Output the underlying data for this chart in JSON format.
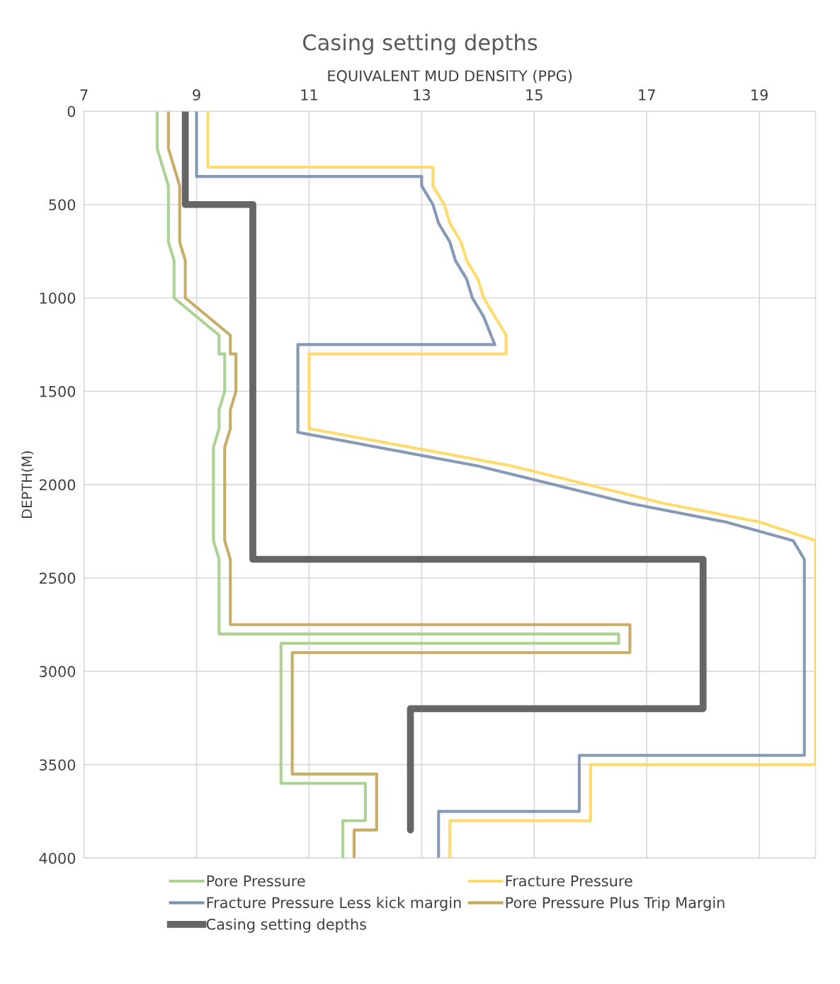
{
  "chart_data": {
    "type": "line",
    "title": "Casing setting depths",
    "xlabel": "EQUIVALENT MUD DENSITY (PPG)",
    "ylabel": "DEPTH(M)",
    "xlim": [
      7,
      20
    ],
    "xticks": [
      7,
      9,
      11,
      13,
      15,
      17,
      19
    ],
    "ylim": [
      4000,
      0
    ],
    "yticks": [
      0,
      500,
      1000,
      1500,
      2000,
      2500,
      3000,
      3500,
      4000
    ],
    "grid": true,
    "legend": "bottom",
    "marker": "none",
    "line_style": "solid",
    "series": [
      {
        "name": "Pore Pressure",
        "color": "#a9d18e",
        "x": [
          8.3,
          8.3,
          8.5,
          8.5,
          8.6,
          8.6,
          9.4,
          9.4,
          9.5,
          9.5,
          9.4,
          9.4,
          9.3,
          9.3,
          9.4,
          9.4,
          16.5,
          16.5,
          10.5,
          10.5,
          12.0,
          12.0,
          11.6,
          11.6
        ],
        "values": [
          0,
          200,
          400,
          700,
          800,
          1000,
          1200,
          1300,
          1300,
          1500,
          1600,
          1700,
          1800,
          2300,
          2400,
          2800,
          2800,
          2850,
          2850,
          3600,
          3600,
          3800,
          3800,
          4000
        ]
      },
      {
        "name": "Fracture Pressure",
        "color": "#ffd966",
        "x": [
          9.2,
          9.2,
          13.2,
          13.2,
          13.4,
          13.5,
          13.7,
          13.8,
          14.0,
          14.1,
          14.5,
          14.5,
          11.0,
          11.0,
          14.6,
          17.3,
          19.0,
          20.0,
          20.0,
          16.0,
          16.0,
          13.5,
          13.5
        ],
        "values": [
          0,
          300,
          300,
          400,
          500,
          600,
          700,
          800,
          900,
          1000,
          1200,
          1300,
          1300,
          1700,
          1900,
          2100,
          2200,
          2300,
          3500,
          3500,
          3800,
          3800,
          4000
        ]
      },
      {
        "name": "Fracture Pressure Less kick margin",
        "color": "#7f93b3",
        "x": [
          9.0,
          9.0,
          13.0,
          13.0,
          13.2,
          13.3,
          13.5,
          13.6,
          13.8,
          13.9,
          14.1,
          14.3,
          10.8,
          10.8,
          14.0,
          16.7,
          18.4,
          19.6,
          19.8,
          19.8,
          15.8,
          15.8,
          13.3,
          13.3
        ],
        "values": [
          0,
          350,
          350,
          400,
          500,
          600,
          700,
          800,
          900,
          1000,
          1100,
          1250,
          1250,
          1720,
          1900,
          2100,
          2200,
          2300,
          2400,
          3450,
          3450,
          3750,
          3750,
          4000
        ]
      },
      {
        "name": "Pore Pressure Plus Trip Margin",
        "color": "#c4a95f",
        "x": [
          8.5,
          8.5,
          8.7,
          8.7,
          8.8,
          8.8,
          9.6,
          9.6,
          9.7,
          9.7,
          9.6,
          9.6,
          9.5,
          9.5,
          9.6,
          9.6,
          16.7,
          16.7,
          10.7,
          10.7,
          12.2,
          12.2,
          11.8,
          11.8
        ],
        "values": [
          0,
          200,
          400,
          700,
          800,
          1000,
          1200,
          1300,
          1300,
          1500,
          1600,
          1700,
          1800,
          2300,
          2400,
          2750,
          2750,
          2900,
          2900,
          3550,
          3550,
          3850,
          3850,
          4000
        ]
      },
      {
        "name": "Casing setting depths",
        "color": "#666666",
        "x": [
          8.8,
          8.8,
          10.0,
          10.0,
          18.0,
          18.0,
          12.8,
          12.8
        ],
        "values": [
          0,
          500,
          500,
          2400,
          2400,
          3200,
          3200,
          3850
        ]
      }
    ]
  }
}
